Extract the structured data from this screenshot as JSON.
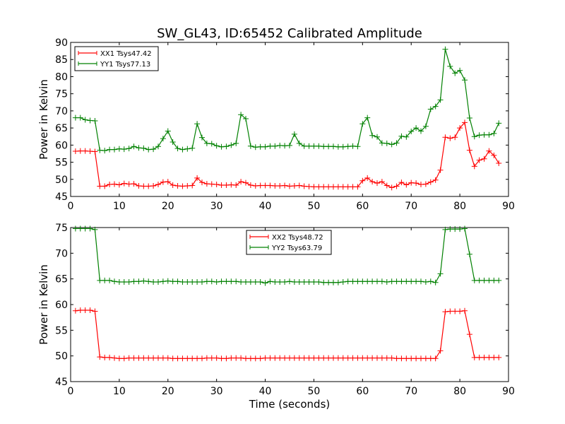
{
  "title": "SW_GL43, ID:65452 Calibrated Amplitude",
  "chart_data": [
    {
      "type": "line",
      "title": "SW_GL43, ID:65452 Calibrated Amplitude",
      "xlabel": "",
      "ylabel": "Power in Kelvin",
      "xlim": [
        0,
        90
      ],
      "ylim": [
        45,
        90
      ],
      "xticks": [
        0,
        10,
        20,
        30,
        40,
        50,
        60,
        70,
        80,
        90
      ],
      "yticks": [
        45,
        50,
        55,
        60,
        65,
        70,
        75,
        80,
        85,
        90
      ],
      "grid": false,
      "legend_position": "top-left",
      "x": [
        1,
        2,
        3,
        4,
        5,
        6,
        7,
        8,
        9,
        10,
        11,
        12,
        13,
        14,
        15,
        16,
        17,
        18,
        19,
        20,
        21,
        22,
        23,
        24,
        25,
        26,
        27,
        28,
        29,
        30,
        31,
        32,
        33,
        34,
        35,
        36,
        37,
        38,
        39,
        40,
        41,
        42,
        43,
        44,
        45,
        46,
        47,
        48,
        49,
        50,
        51,
        52,
        53,
        54,
        55,
        56,
        57,
        58,
        59,
        60,
        61,
        62,
        63,
        64,
        65,
        66,
        67,
        68,
        69,
        70,
        71,
        72,
        73,
        74,
        75,
        76,
        77,
        78,
        79,
        80,
        81,
        82,
        83,
        84,
        85,
        86,
        87,
        88
      ],
      "series": [
        {
          "name": "XX1 Tsys47.42",
          "color": "#ff0000",
          "values": [
            58.2,
            58.3,
            58.3,
            58.2,
            58.1,
            48.0,
            48.0,
            48.5,
            48.6,
            48.4,
            48.8,
            48.6,
            48.7,
            48.1,
            48.0,
            48.0,
            48.1,
            48.5,
            49.2,
            49.3,
            48.3,
            48.1,
            48.0,
            48.1,
            48.2,
            50.4,
            49.1,
            48.7,
            48.6,
            48.5,
            48.3,
            48.3,
            48.4,
            48.3,
            49.3,
            49.0,
            48.3,
            48.1,
            48.2,
            48.2,
            48.2,
            48.1,
            48.1,
            48.2,
            48.0,
            48.1,
            48.2,
            48.0,
            47.9,
            47.8,
            47.8,
            47.8,
            47.8,
            47.8,
            47.8,
            47.8,
            47.8,
            47.8,
            47.8,
            49.6,
            50.4,
            49.3,
            48.9,
            49.3,
            48.2,
            47.6,
            48.0,
            49.1,
            48.4,
            49.0,
            48.9,
            48.5,
            48.6,
            49.2,
            49.8,
            52.7,
            62.3,
            62.0,
            62.3,
            65.0,
            66.6,
            58.5,
            53.8,
            55.6,
            56.0,
            58.3,
            57.0,
            54.7
          ]
        },
        {
          "name": "YY1 Tsys77.13",
          "color": "#008000",
          "values": [
            68.0,
            68.0,
            67.4,
            67.2,
            67.1,
            58.5,
            58.4,
            58.7,
            58.7,
            58.9,
            58.8,
            59.0,
            59.6,
            59.2,
            59.1,
            58.7,
            58.8,
            59.6,
            61.9,
            64.1,
            60.9,
            59.0,
            58.7,
            58.9,
            59.1,
            66.2,
            62.2,
            60.5,
            60.4,
            59.8,
            59.5,
            59.6,
            60.0,
            60.5,
            68.9,
            67.7,
            59.7,
            59.4,
            59.5,
            59.5,
            59.7,
            59.7,
            59.9,
            59.8,
            59.9,
            63.2,
            60.5,
            59.7,
            59.7,
            59.7,
            59.7,
            59.6,
            59.6,
            59.6,
            59.5,
            59.5,
            59.6,
            59.7,
            59.6,
            66.2,
            68.0,
            62.8,
            62.4,
            60.6,
            60.5,
            60.2,
            60.6,
            62.6,
            62.4,
            64.0,
            65.0,
            64.1,
            65.5,
            70.5,
            71.3,
            73.2,
            88.0,
            83.0,
            81.0,
            81.8,
            79.0,
            67.9,
            62.5,
            62.9,
            63.0,
            63.0,
            63.4,
            66.4
          ]
        }
      ]
    },
    {
      "type": "line",
      "title": "",
      "xlabel": "Time (seconds)",
      "ylabel": "Power in Kelvin",
      "xlim": [
        0,
        90
      ],
      "ylim": [
        45,
        75
      ],
      "xticks": [
        0,
        10,
        20,
        30,
        40,
        50,
        60,
        70,
        80,
        90
      ],
      "yticks": [
        45,
        50,
        55,
        60,
        65,
        70,
        75
      ],
      "grid": false,
      "legend_position": "top-center",
      "x": [
        1,
        2,
        3,
        4,
        5,
        6,
        7,
        8,
        9,
        10,
        11,
        12,
        13,
        14,
        15,
        16,
        17,
        18,
        19,
        20,
        21,
        22,
        23,
        24,
        25,
        26,
        27,
        28,
        29,
        30,
        31,
        32,
        33,
        34,
        35,
        36,
        37,
        38,
        39,
        40,
        41,
        42,
        43,
        44,
        45,
        46,
        47,
        48,
        49,
        50,
        51,
        52,
        53,
        54,
        55,
        56,
        57,
        58,
        59,
        60,
        61,
        62,
        63,
        64,
        65,
        66,
        67,
        68,
        69,
        70,
        71,
        72,
        73,
        74,
        75,
        76,
        77,
        78,
        79,
        80,
        81,
        82,
        83,
        84,
        85,
        86,
        87,
        88
      ],
      "series": [
        {
          "name": "XX2 Tsys48.72",
          "color": "#ff0000",
          "values": [
            58.8,
            58.9,
            58.9,
            58.9,
            58.7,
            49.8,
            49.7,
            49.7,
            49.6,
            49.5,
            49.5,
            49.6,
            49.6,
            49.6,
            49.6,
            49.6,
            49.6,
            49.6,
            49.6,
            49.6,
            49.5,
            49.5,
            49.5,
            49.5,
            49.5,
            49.5,
            49.5,
            49.6,
            49.6,
            49.6,
            49.5,
            49.5,
            49.6,
            49.6,
            49.6,
            49.5,
            49.5,
            49.5,
            49.5,
            49.6,
            49.6,
            49.6,
            49.6,
            49.6,
            49.6,
            49.6,
            49.6,
            49.6,
            49.6,
            49.6,
            49.6,
            49.6,
            49.6,
            49.6,
            49.6,
            49.6,
            49.6,
            49.6,
            49.6,
            49.6,
            49.6,
            49.6,
            49.6,
            49.6,
            49.6,
            49.6,
            49.5,
            49.5,
            49.5,
            49.5,
            49.5,
            49.5,
            49.5,
            49.5,
            49.5,
            51.0,
            58.6,
            58.7,
            58.7,
            58.7,
            58.8,
            54.2,
            49.7,
            49.7,
            49.7,
            49.7,
            49.7,
            49.7
          ]
        },
        {
          "name": "YY2 Tsys63.79",
          "color": "#008000",
          "values": [
            74.8,
            74.8,
            74.8,
            74.8,
            74.6,
            64.7,
            64.7,
            64.7,
            64.5,
            64.4,
            64.4,
            64.4,
            64.5,
            64.5,
            64.6,
            64.5,
            64.4,
            64.4,
            64.5,
            64.6,
            64.5,
            64.5,
            64.4,
            64.4,
            64.4,
            64.4,
            64.4,
            64.5,
            64.5,
            64.4,
            64.5,
            64.5,
            64.5,
            64.5,
            64.4,
            64.4,
            64.4,
            64.4,
            64.4,
            64.2,
            64.5,
            64.4,
            64.4,
            64.4,
            64.5,
            64.4,
            64.4,
            64.4,
            64.4,
            64.4,
            64.4,
            64.3,
            64.3,
            64.3,
            64.3,
            64.4,
            64.5,
            64.5,
            64.5,
            64.5,
            64.5,
            64.5,
            64.5,
            64.5,
            64.4,
            64.5,
            64.5,
            64.5,
            64.5,
            64.5,
            64.5,
            64.5,
            64.4,
            64.5,
            64.3,
            66.0,
            74.6,
            74.7,
            74.7,
            74.7,
            74.8,
            69.8,
            64.7,
            64.7,
            64.7,
            64.7,
            64.7,
            64.7
          ]
        }
      ]
    }
  ]
}
